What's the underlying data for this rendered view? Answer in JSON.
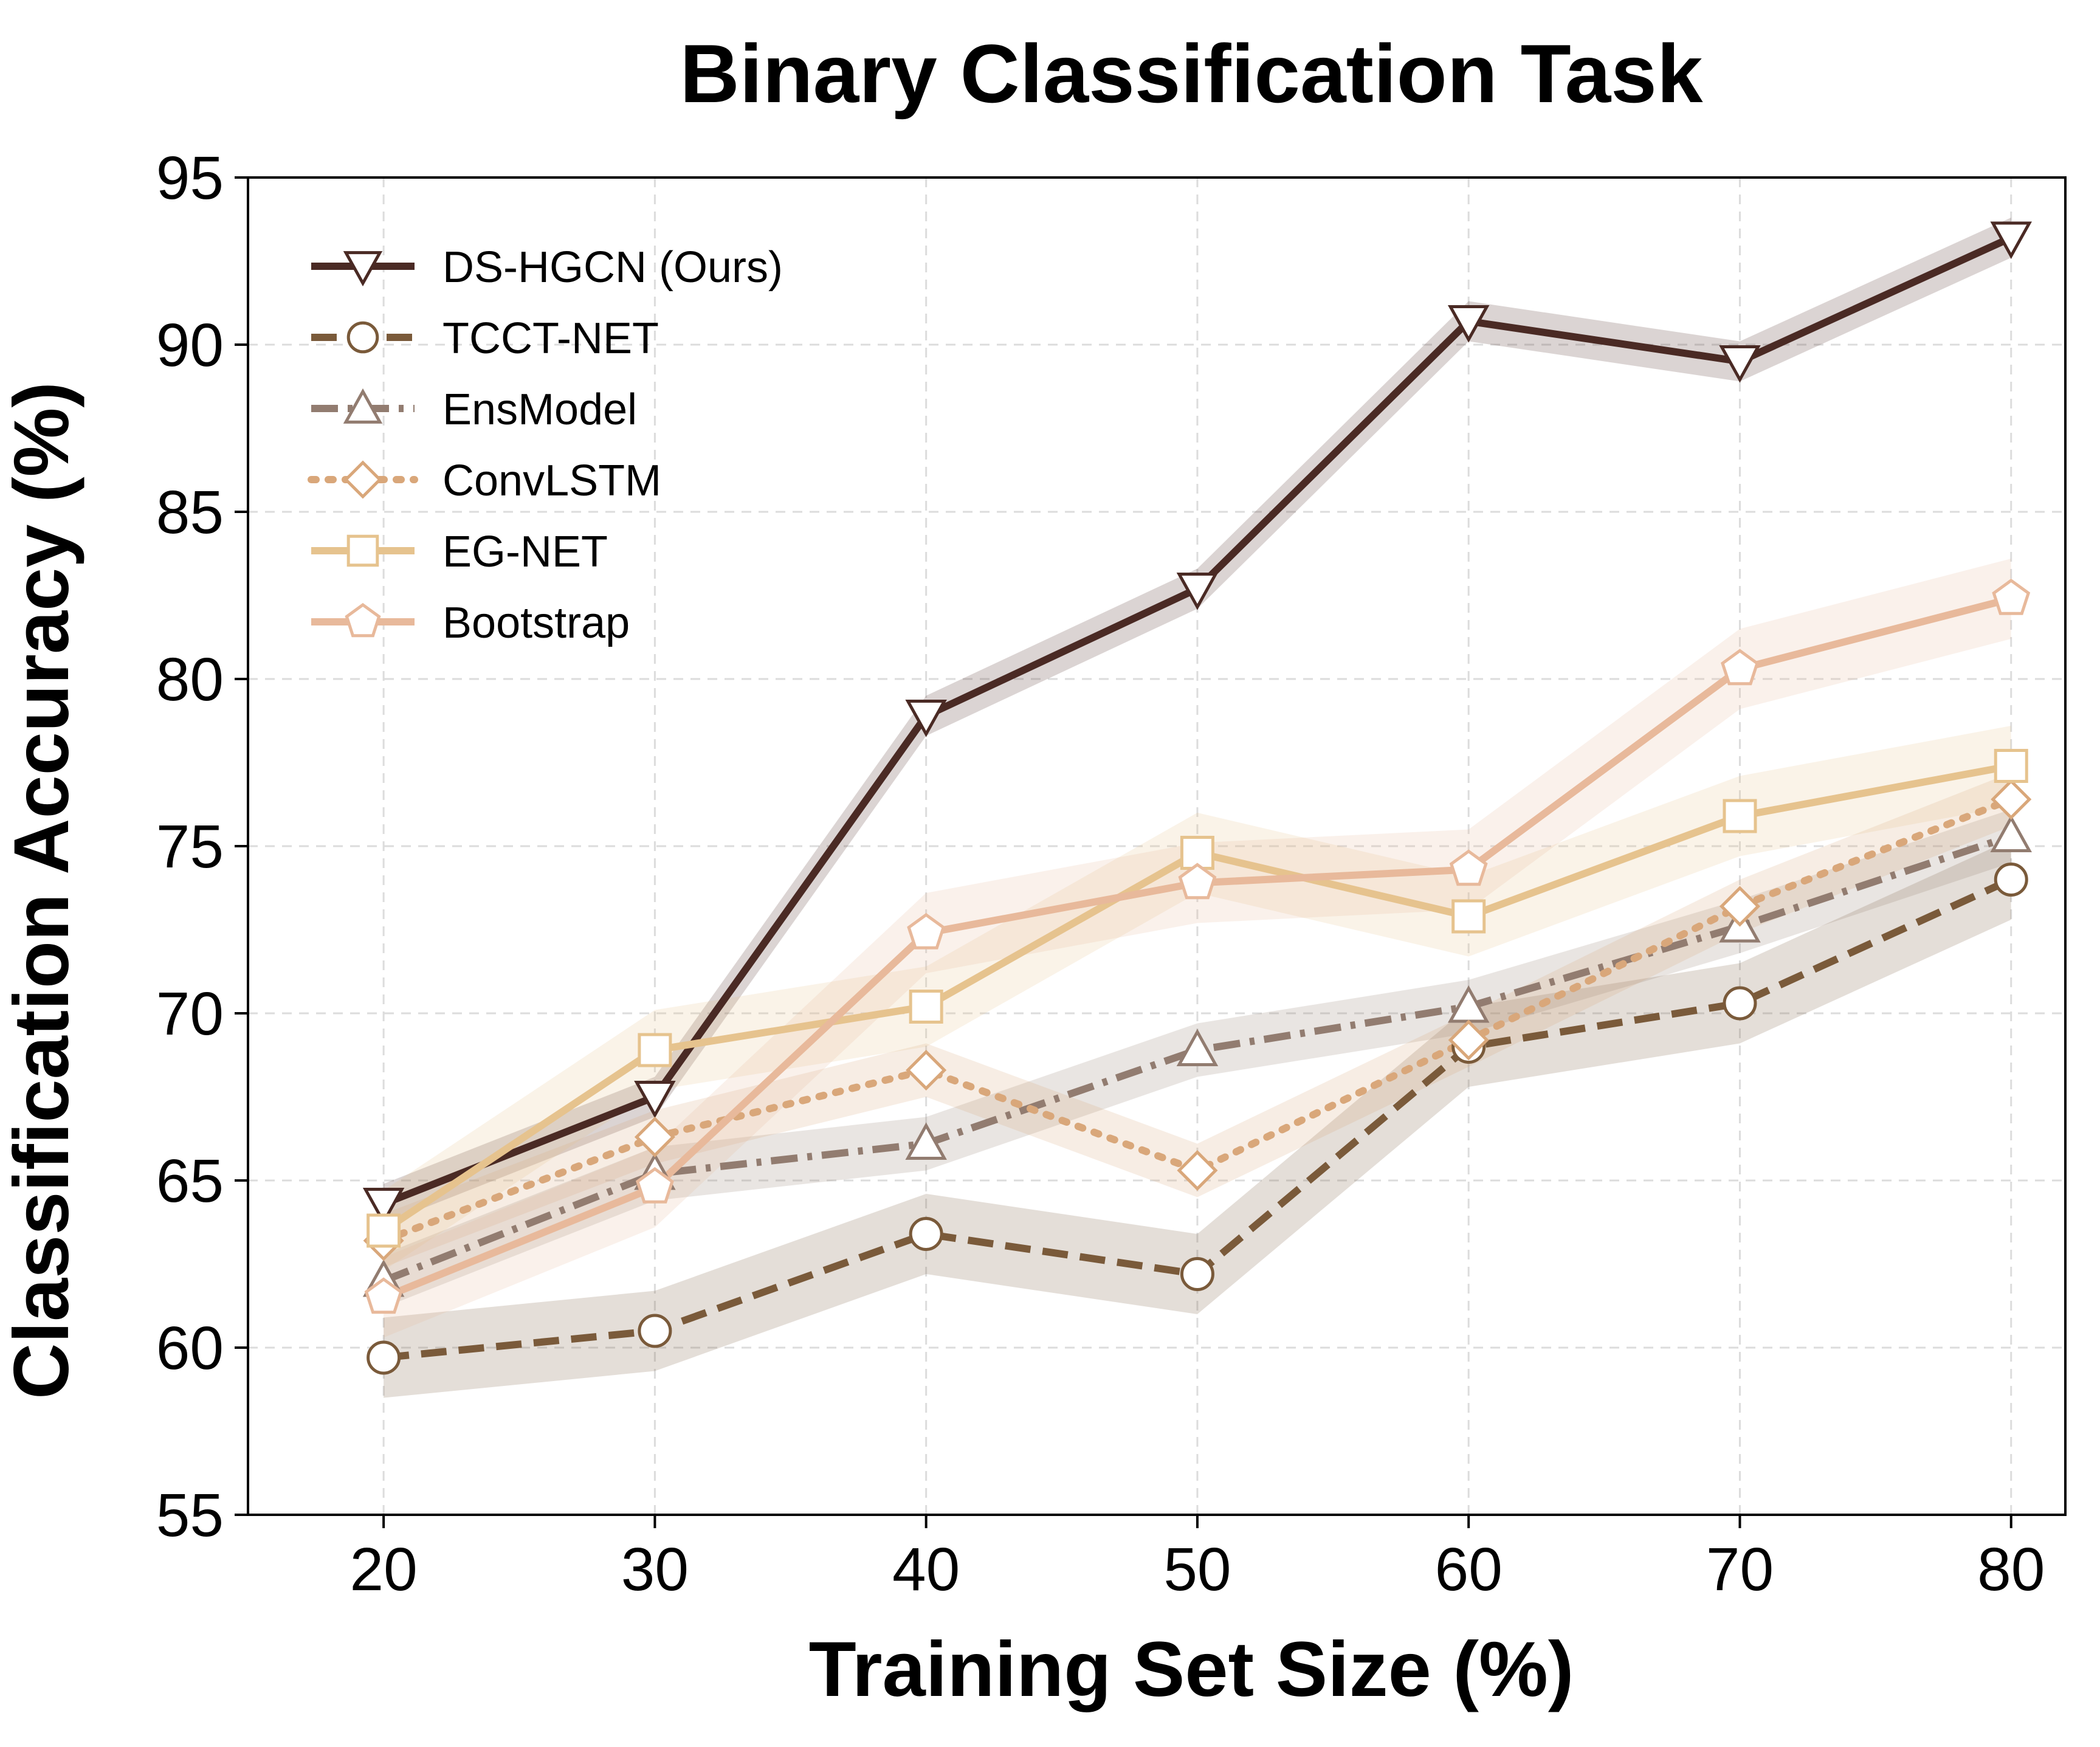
{
  "chart_data": {
    "type": "line",
    "title": "Binary Classification Task",
    "xlabel": "Training Set Size (%)",
    "ylabel": "Classification Accuracy (%)",
    "x": [
      20,
      30,
      40,
      50,
      60,
      70,
      80
    ],
    "xlim": [
      15,
      82
    ],
    "ylim": [
      55,
      95
    ],
    "xticks": [
      20,
      30,
      40,
      50,
      60,
      70,
      80
    ],
    "yticks": [
      55,
      60,
      65,
      70,
      75,
      80,
      85,
      90,
      95
    ],
    "grid": true,
    "legend_position": "top-left",
    "series": [
      {
        "name": "DS-HGCN (Ours)",
        "values": [
          64.3,
          67.5,
          78.9,
          82.7,
          90.7,
          89.5,
          93.2
        ],
        "band": 0.6,
        "color": "#4a2a24",
        "marker": "triangle-down",
        "line_style": "solid"
      },
      {
        "name": "TCCT-NET",
        "values": [
          59.7,
          60.5,
          63.4,
          62.2,
          69.0,
          70.3,
          74.0
        ],
        "band": 1.2,
        "color": "#7a5a3a",
        "marker": "circle",
        "line_style": "dashed"
      },
      {
        "name": "EnsModel",
        "values": [
          62.0,
          65.2,
          66.1,
          68.9,
          70.2,
          72.6,
          75.3
        ],
        "band": 0.8,
        "color": "#927c70",
        "marker": "triangle-up",
        "line_style": "dashdot"
      },
      {
        "name": "ConvLSTM",
        "values": [
          63.2,
          66.3,
          68.3,
          65.3,
          69.2,
          73.2,
          76.4
        ],
        "band": 0.8,
        "color": "#d9a77a",
        "marker": "diamond",
        "line_style": "dotted"
      },
      {
        "name": "EG-NET",
        "values": [
          63.5,
          68.9,
          70.2,
          74.8,
          72.9,
          75.9,
          77.4
        ],
        "band": 1.2,
        "color": "#e6c38e",
        "marker": "square",
        "line_style": "solid"
      },
      {
        "name": "Bootstrap",
        "values": [
          61.5,
          64.8,
          72.4,
          73.9,
          74.3,
          80.3,
          82.4
        ],
        "band": 1.2,
        "color": "#e8b99b",
        "marker": "pentagon",
        "line_style": "solid"
      }
    ]
  }
}
